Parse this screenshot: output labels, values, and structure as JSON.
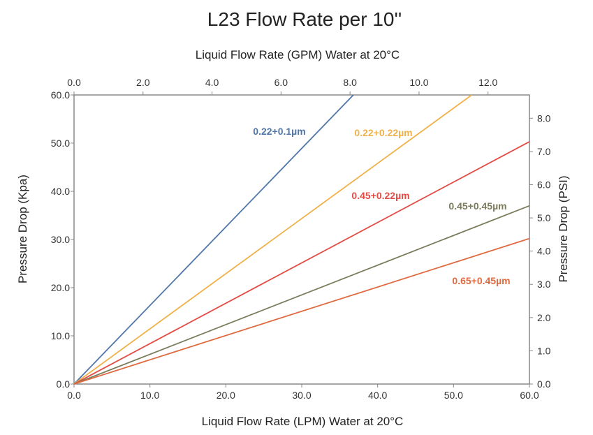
{
  "chart_data": {
    "type": "line",
    "title": "L23 Flow Rate per 10''",
    "xlabel": "Liquid Flow Rate (LPM) Water at 20°C",
    "ylabel": "Pressure Drop (Kpa)",
    "x2label": "Liquid Flow Rate (GPM) Water at 20°C",
    "y2label": "Pressure Drop (PSI)",
    "xlim": [
      0,
      60
    ],
    "ylim": [
      0,
      60
    ],
    "x2lim": [
      0,
      13.2
    ],
    "y2lim": [
      0,
      8.7
    ],
    "x_ticks": [
      "0.0",
      "10.0",
      "20.0",
      "30.0",
      "40.0",
      "50.0",
      "60.0"
    ],
    "y_ticks": [
      "0.0",
      "10.0",
      "20.0",
      "30.0",
      "40.0",
      "50.0",
      "60.0"
    ],
    "x2_ticks": [
      "0.0",
      "2.0",
      "4.0",
      "6.0",
      "8.0",
      "10.0",
      "12.0"
    ],
    "y2_ticks": [
      "0.0",
      "1.0",
      "2.0",
      "3.0",
      "4.0",
      "5.0",
      "6.0",
      "7.0",
      "8.0"
    ],
    "grid": false,
    "series": [
      {
        "name": "0.22+0.1µm",
        "color": "#4f76a8",
        "x": [
          0,
          36.8
        ],
        "y": [
          0,
          60
        ]
      },
      {
        "name": "0.22+0.22µm",
        "color": "#f0b14a",
        "x": [
          0,
          52.4
        ],
        "y": [
          0,
          60
        ]
      },
      {
        "name": "0.45+0.22µm",
        "color": "#e34c45",
        "x": [
          0,
          60
        ],
        "y": [
          0,
          50.3
        ]
      },
      {
        "name": "0.45+0.45µm",
        "color": "#7b7c5c",
        "x": [
          0,
          60
        ],
        "y": [
          0,
          37.0
        ]
      },
      {
        "name": "0.65+0.45µm",
        "color": "#df6a40",
        "x": [
          0,
          60
        ],
        "y": [
          0,
          30.2
        ]
      }
    ]
  }
}
